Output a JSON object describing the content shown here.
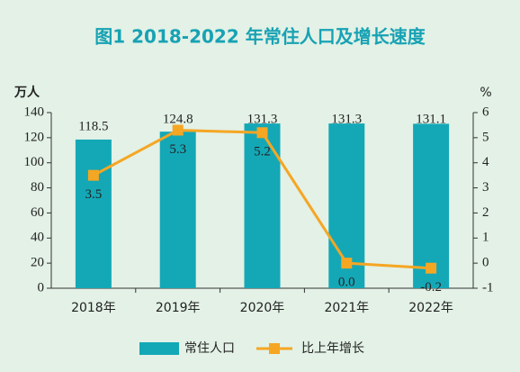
{
  "chart_data": {
    "type": "bar_line",
    "title": "图1  2018-2022 年常住人口及增长速度",
    "y_label": "万人",
    "y2_label": "%",
    "categories": [
      "2018年",
      "2019年",
      "2020年",
      "2021年",
      "2022年"
    ],
    "series": [
      {
        "name": "常住人口",
        "type": "bar",
        "color": "#14a8b7",
        "values": [
          118.5,
          124.8,
          131.3,
          131.3,
          131.1
        ]
      },
      {
        "name": "比上年增长",
        "type": "line",
        "axis": "y2",
        "color": "#f5a623",
        "values": [
          3.5,
          5.3,
          5.2,
          0,
          -0.2
        ],
        "value_labels": [
          "3.5",
          "5.3",
          "5.2",
          "0.0",
          "-0.2"
        ]
      }
    ],
    "ylim": [
      0,
      140
    ],
    "yticks": [
      0,
      20,
      40,
      60,
      80,
      100,
      120,
      140
    ],
    "y2lim": [
      -1,
      6
    ],
    "y2ticks": [
      -1,
      0,
      1,
      2,
      3,
      4,
      5,
      6
    ],
    "legend": "bottom"
  }
}
